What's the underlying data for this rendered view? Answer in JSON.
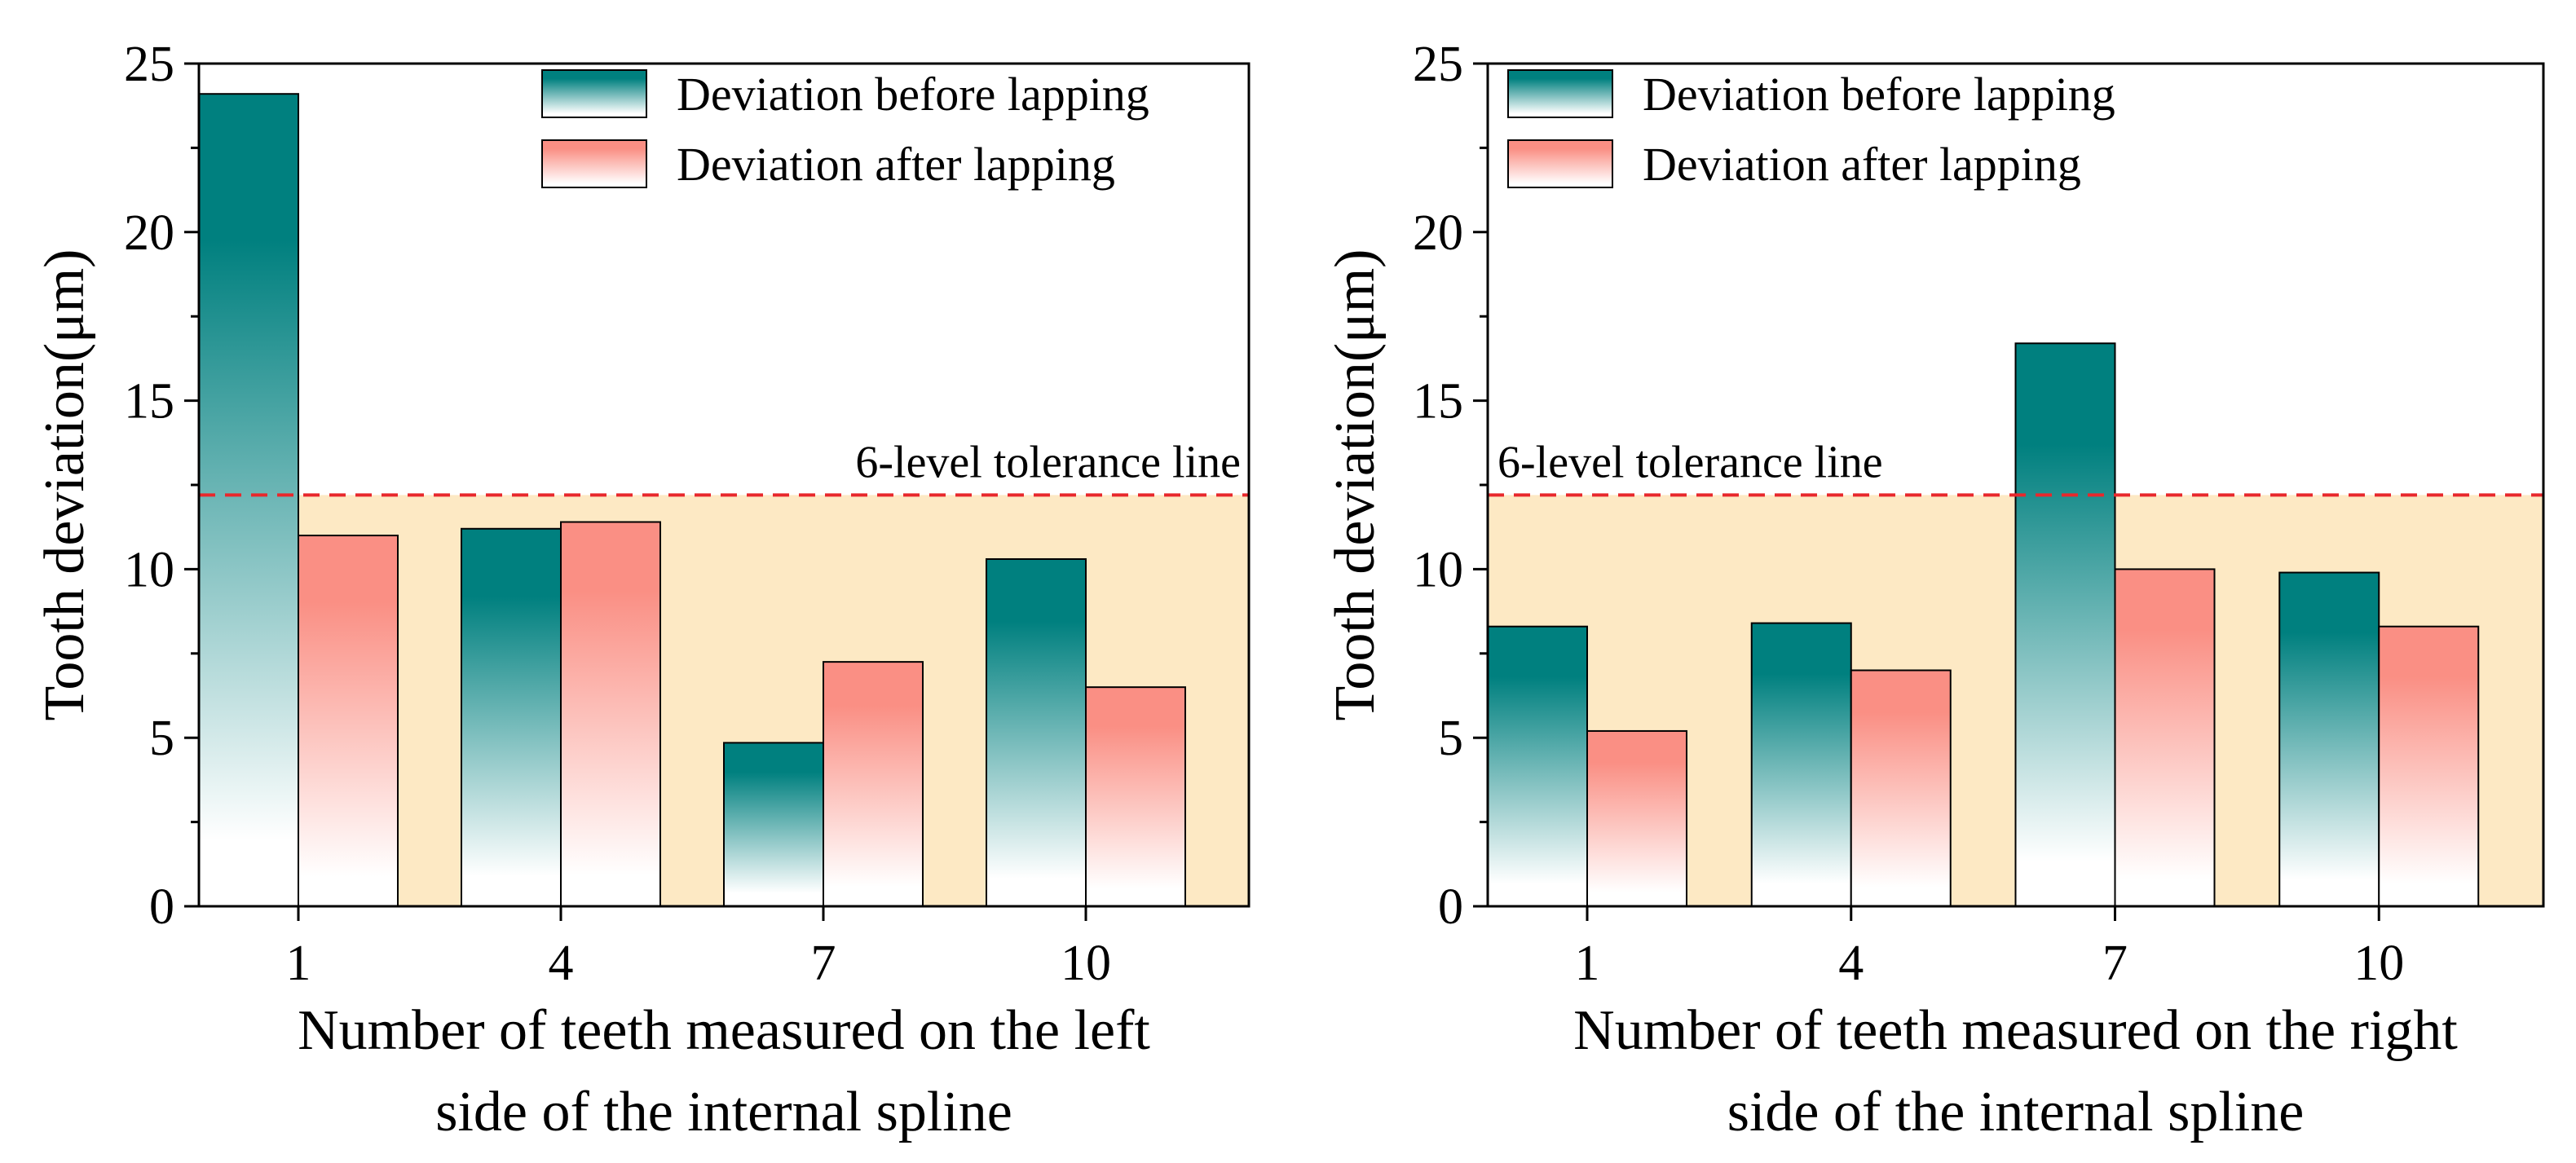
{
  "chart_data": [
    {
      "type": "bar",
      "categories": [
        "1",
        "4",
        "7",
        "10"
      ],
      "series": [
        {
          "name": "Deviation before lapping",
          "values": [
            24.1,
            11.2,
            4.85,
            10.3
          ]
        },
        {
          "name": "Deviation after lapping",
          "values": [
            11.0,
            11.4,
            7.25,
            6.5
          ]
        }
      ],
      "ylabel": "Tooth deviation(μm)",
      "xlabel_lines": [
        "Number of teeth measured on the left",
        "side of the internal spline"
      ],
      "ylim": [
        0,
        25
      ],
      "yticks": [
        0,
        5,
        10,
        15,
        20,
        25
      ],
      "tolerance": {
        "value": 12.2,
        "label": "6-level tolerance line",
        "color": "#e8282c",
        "band_color": "#fde9c4"
      },
      "legend_position": "top-right",
      "grid": false
    },
    {
      "type": "bar",
      "categories": [
        "1",
        "4",
        "7",
        "10"
      ],
      "series": [
        {
          "name": "Deviation before lapping",
          "values": [
            8.3,
            8.4,
            16.7,
            9.9
          ]
        },
        {
          "name": "Deviation after lapping",
          "values": [
            5.2,
            7.0,
            10.0,
            8.3
          ]
        }
      ],
      "ylabel": "Tooth deviation(μm)",
      "xlabel_lines": [
        "Number of teeth measured on the right",
        "side of the internal spline"
      ],
      "ylim": [
        0,
        25
      ],
      "yticks": [
        0,
        5,
        10,
        15,
        20,
        25
      ],
      "tolerance": {
        "value": 12.2,
        "label": "6-level tolerance line",
        "color": "#e8282c",
        "band_color": "#fde9c4"
      },
      "legend_position": "top-left",
      "grid": false
    }
  ],
  "colors": {
    "before_top": "#00807f",
    "after_top": "#fa8f84",
    "bar_bottom": "#ffffff"
  }
}
